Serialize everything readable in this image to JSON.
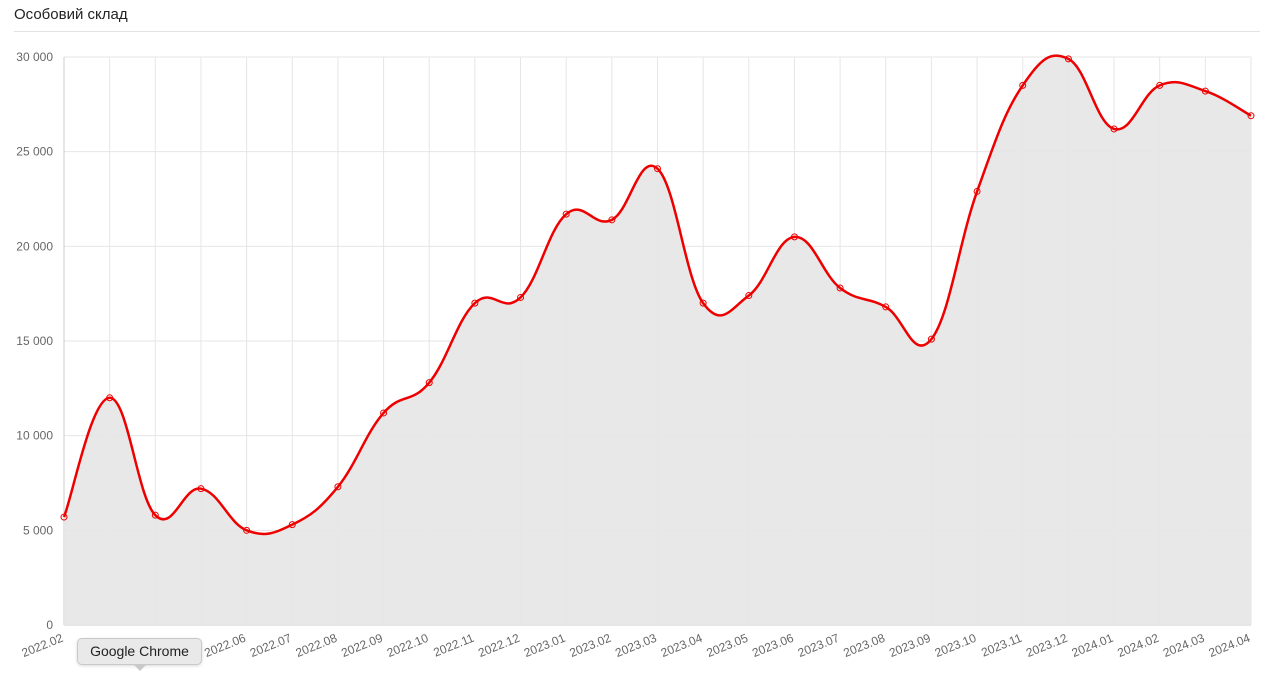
{
  "chart_data": {
    "type": "line",
    "title": "Особовий склад",
    "categories": [
      "2022.02",
      null,
      null,
      null,
      "2022.06",
      "2022.07",
      "2022.08",
      "2022.09",
      "2022.10",
      "2022.11",
      "2022.12",
      "2023.01",
      "2023.02",
      "2023.03",
      "2023.04",
      "2023.05",
      "2023.06",
      "2023.07",
      "2023.08",
      "2023.09",
      "2023.10",
      "2023.11",
      "2023.12",
      "2024.01",
      "2024.02",
      "2024.03",
      "2024.04"
    ],
    "series": [
      {
        "color": "#ee0000",
        "fill": "#e6e6e6",
        "values": [
          5700,
          12000,
          5800,
          7200,
          5000,
          5300,
          7300,
          11200,
          12800,
          17000,
          17300,
          21700,
          21400,
          24100,
          17000,
          17400,
          20500,
          17800,
          16800,
          15100,
          22900,
          28500,
          29900,
          26200,
          28500,
          28200,
          26900
        ]
      }
    ],
    "ylim": [
      0,
      30000
    ],
    "yticks": [
      0,
      {
        "value": 5000,
        "label": "5 000"
      },
      {
        "value": 10000,
        "label": "10 000"
      },
      {
        "value": 15000,
        "label": "15 000"
      },
      {
        "value": 20000,
        "label": "20 000"
      },
      {
        "value": 25000,
        "label": "25 000"
      },
      {
        "value": 30000,
        "label": "30 000"
      }
    ],
    "grid": true,
    "tooltip": "Google Chrome"
  }
}
